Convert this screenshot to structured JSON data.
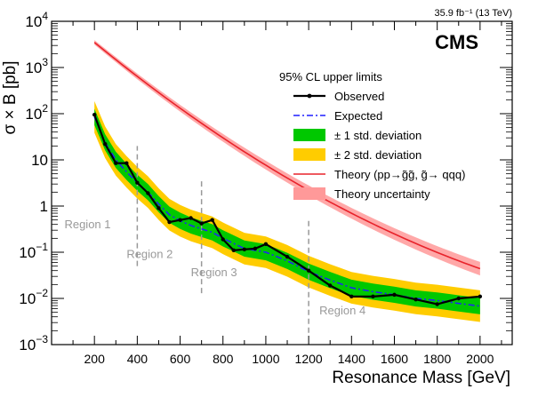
{
  "chart_data": {
    "type": "line",
    "title": "",
    "lumi_label": "35.9 fb⁻¹ (13 TeV)",
    "experiment_label": "CMS",
    "xlabel": "Resonance Mass [GeV]",
    "ylabel": "σ × B [pb]",
    "xlim": [
      0,
      2150
    ],
    "ylim": [
      0.001,
      10000
    ],
    "yscale": "log",
    "x_ticks": [
      200,
      400,
      600,
      800,
      1000,
      1200,
      1400,
      1600,
      1800,
      2000
    ],
    "x_tick_labels": [
      "200",
      "400",
      "600",
      "800",
      "1000",
      "1200",
      "1400",
      "1600",
      "1800",
      "2000"
    ],
    "y_ticks": [
      0.001,
      0.01,
      0.1,
      1,
      10,
      100,
      1000,
      10000
    ],
    "y_tick_labels": [
      {
        "base": "10",
        "exp": "−3"
      },
      {
        "base": "10",
        "exp": "−2"
      },
      {
        "base": "10",
        "exp": "−1"
      },
      {
        "base": "1",
        "exp": ""
      },
      {
        "base": "10",
        "exp": ""
      },
      {
        "base": "10",
        "exp": "2"
      },
      {
        "base": "10",
        "exp": "3"
      },
      {
        "base": "10",
        "exp": "4"
      }
    ],
    "legend_title": "95% CL upper limits",
    "legend_position": "top-right",
    "legend": [
      {
        "key": "observed",
        "label": "Observed"
      },
      {
        "key": "expected",
        "label": "Expected"
      },
      {
        "key": "band1",
        "label": "± 1 std. deviation"
      },
      {
        "key": "band2",
        "label": "± 2 std. deviation"
      },
      {
        "key": "theory",
        "label": "Theory (pp→g̃g̃, g̃→ qqq)"
      },
      {
        "key": "theory_unc",
        "label": "Theory uncertainty"
      }
    ],
    "colors": {
      "observed": "#000000",
      "expected": "#1f1fff",
      "band1": "#00c800",
      "band2": "#ffcc00",
      "theory": "#e8232b",
      "theory_unc": "#ff9999",
      "region": "#999999",
      "region_text": "#999999"
    },
    "regions": [
      {
        "label": "Region 1",
        "boundary": 400,
        "line_range": [
          0.05,
          20
        ],
        "label_x": 60,
        "label_y": 0.33
      },
      {
        "label": "Region 2",
        "boundary": 700,
        "line_range": [
          0.013,
          4
        ],
        "label_x": 350,
        "label_y": 0.075
      },
      {
        "label": "Region 3",
        "boundary": 1200,
        "line_range": [
          0.0018,
          0.5
        ],
        "label_x": 650,
        "label_y": 0.03
      },
      {
        "label": "Region 4",
        "boundary": null,
        "line_range": null,
        "label_x": 1250,
        "label_y": 0.0045
      }
    ],
    "series": [
      {
        "name": "Observed",
        "key": "observed",
        "x": [
          200,
          250,
          300,
          350,
          400,
          450,
          500,
          550,
          600,
          650,
          700,
          750,
          800,
          850,
          900,
          950,
          1000,
          1100,
          1200,
          1300,
          1400,
          1500,
          1600,
          1700,
          1800,
          1900,
          2000
        ],
        "y": [
          95,
          22,
          8.5,
          8.5,
          3.2,
          1.9,
          0.9,
          0.45,
          0.5,
          0.55,
          0.42,
          0.5,
          0.19,
          0.11,
          0.115,
          0.12,
          0.15,
          0.08,
          0.04,
          0.019,
          0.011,
          0.011,
          0.012,
          0.0095,
          0.0075,
          0.01,
          0.011
        ]
      },
      {
        "name": "Expected",
        "key": "expected",
        "x": [
          200,
          250,
          300,
          350,
          400,
          450,
          500,
          550,
          600,
          650,
          700,
          750,
          800,
          900,
          1000,
          1100,
          1200,
          1300,
          1400,
          1500,
          1600,
          1700,
          1800,
          1900,
          2000
        ],
        "y": [
          85,
          24,
          10,
          5.5,
          3.2,
          2.0,
          1.1,
          0.65,
          0.48,
          0.38,
          0.32,
          0.27,
          0.2,
          0.12,
          0.1,
          0.065,
          0.038,
          0.025,
          0.017,
          0.014,
          0.012,
          0.01,
          0.009,
          0.0078,
          0.0068
        ]
      }
    ]
  }
}
